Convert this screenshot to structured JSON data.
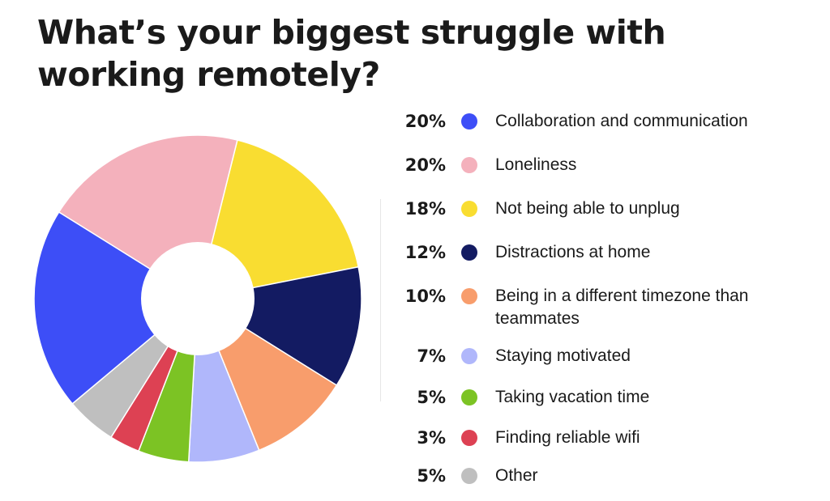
{
  "chart_data": {
    "type": "pie",
    "title": "What’s your biggest struggle with working remotely?",
    "legend_position": "right",
    "hole": true,
    "slices": [
      {
        "label": "Collaboration and communication",
        "percent_label": "20%",
        "value": 20,
        "color": "#3d4ef7"
      },
      {
        "label": "Loneliness",
        "percent_label": "20%",
        "value": 20,
        "color": "#f4b1bc"
      },
      {
        "label": "Not being able to unplug",
        "percent_label": "18%",
        "value": 18,
        "color": "#f9dd31"
      },
      {
        "label": "Distractions at home",
        "percent_label": "12%",
        "value": 12,
        "color": "#131b62"
      },
      {
        "label": "Being in a different timezone than teammates",
        "percent_label": "10%",
        "value": 10,
        "color": "#f89d6c"
      },
      {
        "label": "Staying motivated",
        "percent_label": "7%",
        "value": 7,
        "color": "#b0b7fb"
      },
      {
        "label": "Taking vacation time",
        "percent_label": "5%",
        "value": 5,
        "color": "#7cc324"
      },
      {
        "label": "Finding reliable wifi",
        "percent_label": "3%",
        "value": 3,
        "color": "#dd4153"
      },
      {
        "label": "Other",
        "percent_label": "5%",
        "value": 5,
        "color": "#bfbfbf"
      }
    ]
  }
}
